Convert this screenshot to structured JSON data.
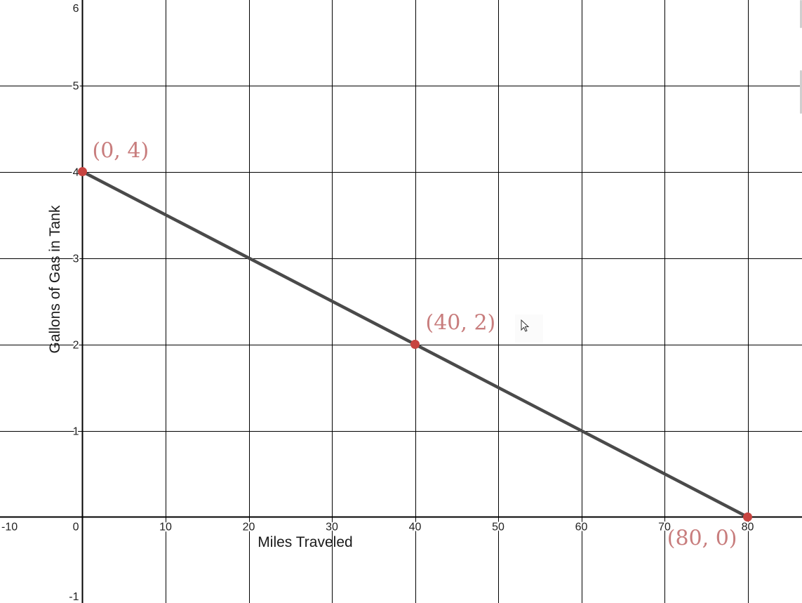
{
  "chart_data": {
    "type": "line",
    "xlabel": "Miles Traveled",
    "ylabel": "Gallons of Gas in Tank",
    "xlim": [
      -10,
      80
    ],
    "ylim": [
      -1,
      6
    ],
    "x_ticks": [
      -10,
      0,
      10,
      20,
      30,
      40,
      50,
      60,
      70,
      80
    ],
    "y_ticks": [
      -1,
      1,
      2,
      3,
      4,
      5,
      6
    ],
    "x_tick_labels": [
      "-10",
      "0",
      "10",
      "20",
      "30",
      "40",
      "50",
      "60",
      "70",
      "80"
    ],
    "y_tick_labels": [
      "-1",
      "1",
      "2",
      "3",
      "4",
      "5",
      "6"
    ],
    "grid": true,
    "series": [
      {
        "x": [
          0,
          80
        ],
        "y": [
          4,
          0
        ],
        "color": "#4a4a4a"
      }
    ],
    "points": [
      {
        "x": 0,
        "y": 4,
        "label": "(0, 4)"
      },
      {
        "x": 40,
        "y": 2,
        "label": "(40, 2)"
      },
      {
        "x": 80,
        "y": 0,
        "label": "(80, 0)"
      }
    ],
    "point_color": "#c74440",
    "label_color": "#c87d7d"
  }
}
